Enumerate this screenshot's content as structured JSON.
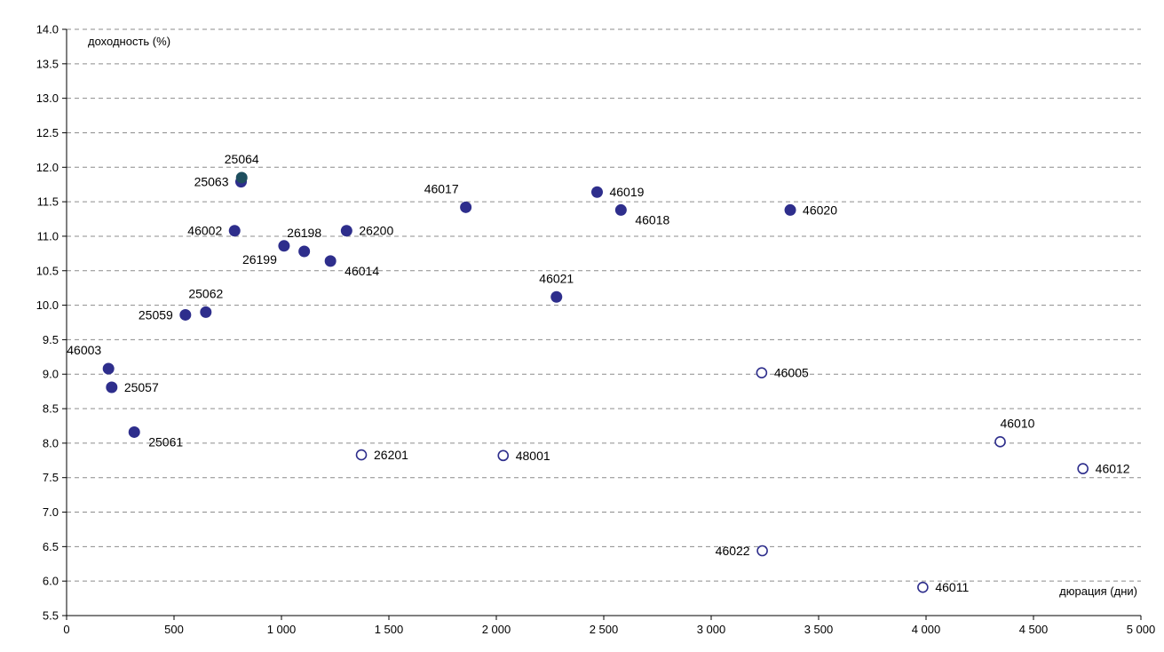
{
  "colors": {
    "marker": "#2e2e8c",
    "marker_special": "#1e4e5e",
    "grid": "#8c8c8c",
    "axis": "#000000"
  },
  "chart_data": {
    "type": "scatter",
    "title": "",
    "ylabel": "доходность (%)",
    "xlabel": "дюрация (дни)",
    "xlim": [
      0,
      5000
    ],
    "ylim": [
      5.5,
      14.0
    ],
    "grid": "horizontal-dashed",
    "x_ticks": [
      {
        "value": 0,
        "label": "0"
      },
      {
        "value": 500,
        "label": "500"
      },
      {
        "value": 1000,
        "label": "1 000"
      },
      {
        "value": 1500,
        "label": "1 500"
      },
      {
        "value": 2000,
        "label": "2 000"
      },
      {
        "value": 2500,
        "label": "2 500"
      },
      {
        "value": 3000,
        "label": "3 000"
      },
      {
        "value": 3500,
        "label": "3 500"
      },
      {
        "value": 4000,
        "label": "4 000"
      },
      {
        "value": 4500,
        "label": "4 500"
      },
      {
        "value": 5000,
        "label": "5 000"
      }
    ],
    "y_ticks": [
      {
        "value": 5.5,
        "label": "5.5"
      },
      {
        "value": 6.0,
        "label": "6.0"
      },
      {
        "value": 6.5,
        "label": "6.5"
      },
      {
        "value": 7.0,
        "label": "7.0"
      },
      {
        "value": 7.5,
        "label": "7.5"
      },
      {
        "value": 8.0,
        "label": "8.0"
      },
      {
        "value": 8.5,
        "label": "8.5"
      },
      {
        "value": 9.0,
        "label": "9.0"
      },
      {
        "value": 9.5,
        "label": "9.5"
      },
      {
        "value": 10.0,
        "label": "10.0"
      },
      {
        "value": 10.5,
        "label": "10.5"
      },
      {
        "value": 11.0,
        "label": "11.0"
      },
      {
        "value": 11.5,
        "label": "11.5"
      },
      {
        "value": 12.0,
        "label": "12.0"
      },
      {
        "value": 12.5,
        "label": "12.5"
      },
      {
        "value": 13.0,
        "label": "13.0"
      },
      {
        "value": 13.5,
        "label": "13.5"
      },
      {
        "value": 14.0,
        "label": "14.0"
      }
    ],
    "series": [
      {
        "style": "filled",
        "points": [
          {
            "label": "25057",
            "x": 210,
            "y": 8.81,
            "label_pos": "right"
          },
          {
            "label": "46003",
            "x": 195,
            "y": 9.08,
            "label_pos": "above-left"
          },
          {
            "label": "25061",
            "x": 315,
            "y": 8.16,
            "label_pos": "right-below"
          },
          {
            "label": "25059",
            "x": 553,
            "y": 9.86,
            "label_pos": "left"
          },
          {
            "label": "25062",
            "x": 648,
            "y": 9.9,
            "label_pos": "above"
          },
          {
            "label": "46002",
            "x": 782,
            "y": 11.08,
            "label_pos": "left"
          },
          {
            "label": "25063",
            "x": 812,
            "y": 11.79,
            "label_pos": "left"
          },
          {
            "label": "25064",
            "x": 815,
            "y": 11.85,
            "label_pos": "above",
            "color": "special"
          },
          {
            "label": "26199",
            "x": 1012,
            "y": 10.86,
            "label_pos": "below-left"
          },
          {
            "label": "26198",
            "x": 1106,
            "y": 10.78,
            "label_pos": "above"
          },
          {
            "label": "46014",
            "x": 1228,
            "y": 10.64,
            "label_pos": "right-below"
          },
          {
            "label": "26200",
            "x": 1303,
            "y": 11.08,
            "label_pos": "right"
          },
          {
            "label": "46017",
            "x": 1858,
            "y": 11.42,
            "label_pos": "above-left"
          },
          {
            "label": "46021",
            "x": 2280,
            "y": 10.12,
            "label_pos": "above"
          },
          {
            "label": "46019",
            "x": 2469,
            "y": 11.64,
            "label_pos": "right"
          },
          {
            "label": "46018",
            "x": 2580,
            "y": 11.38,
            "label_pos": "right-below"
          },
          {
            "label": "46020",
            "x": 3368,
            "y": 11.38,
            "label_pos": "right"
          }
        ]
      },
      {
        "style": "hollow",
        "points": [
          {
            "label": "26201",
            "x": 1372,
            "y": 7.83,
            "label_pos": "right"
          },
          {
            "label": "48001",
            "x": 2032,
            "y": 7.82,
            "label_pos": "right"
          },
          {
            "label": "46005",
            "x": 3235,
            "y": 9.02,
            "label_pos": "right"
          },
          {
            "label": "46022",
            "x": 3238,
            "y": 6.44,
            "label_pos": "left"
          },
          {
            "label": "46011",
            "x": 3985,
            "y": 5.91,
            "label_pos": "right"
          },
          {
            "label": "46010",
            "x": 4345,
            "y": 8.02,
            "label_pos": "above-right"
          },
          {
            "label": "46012",
            "x": 4730,
            "y": 7.63,
            "label_pos": "right"
          }
        ]
      }
    ]
  }
}
